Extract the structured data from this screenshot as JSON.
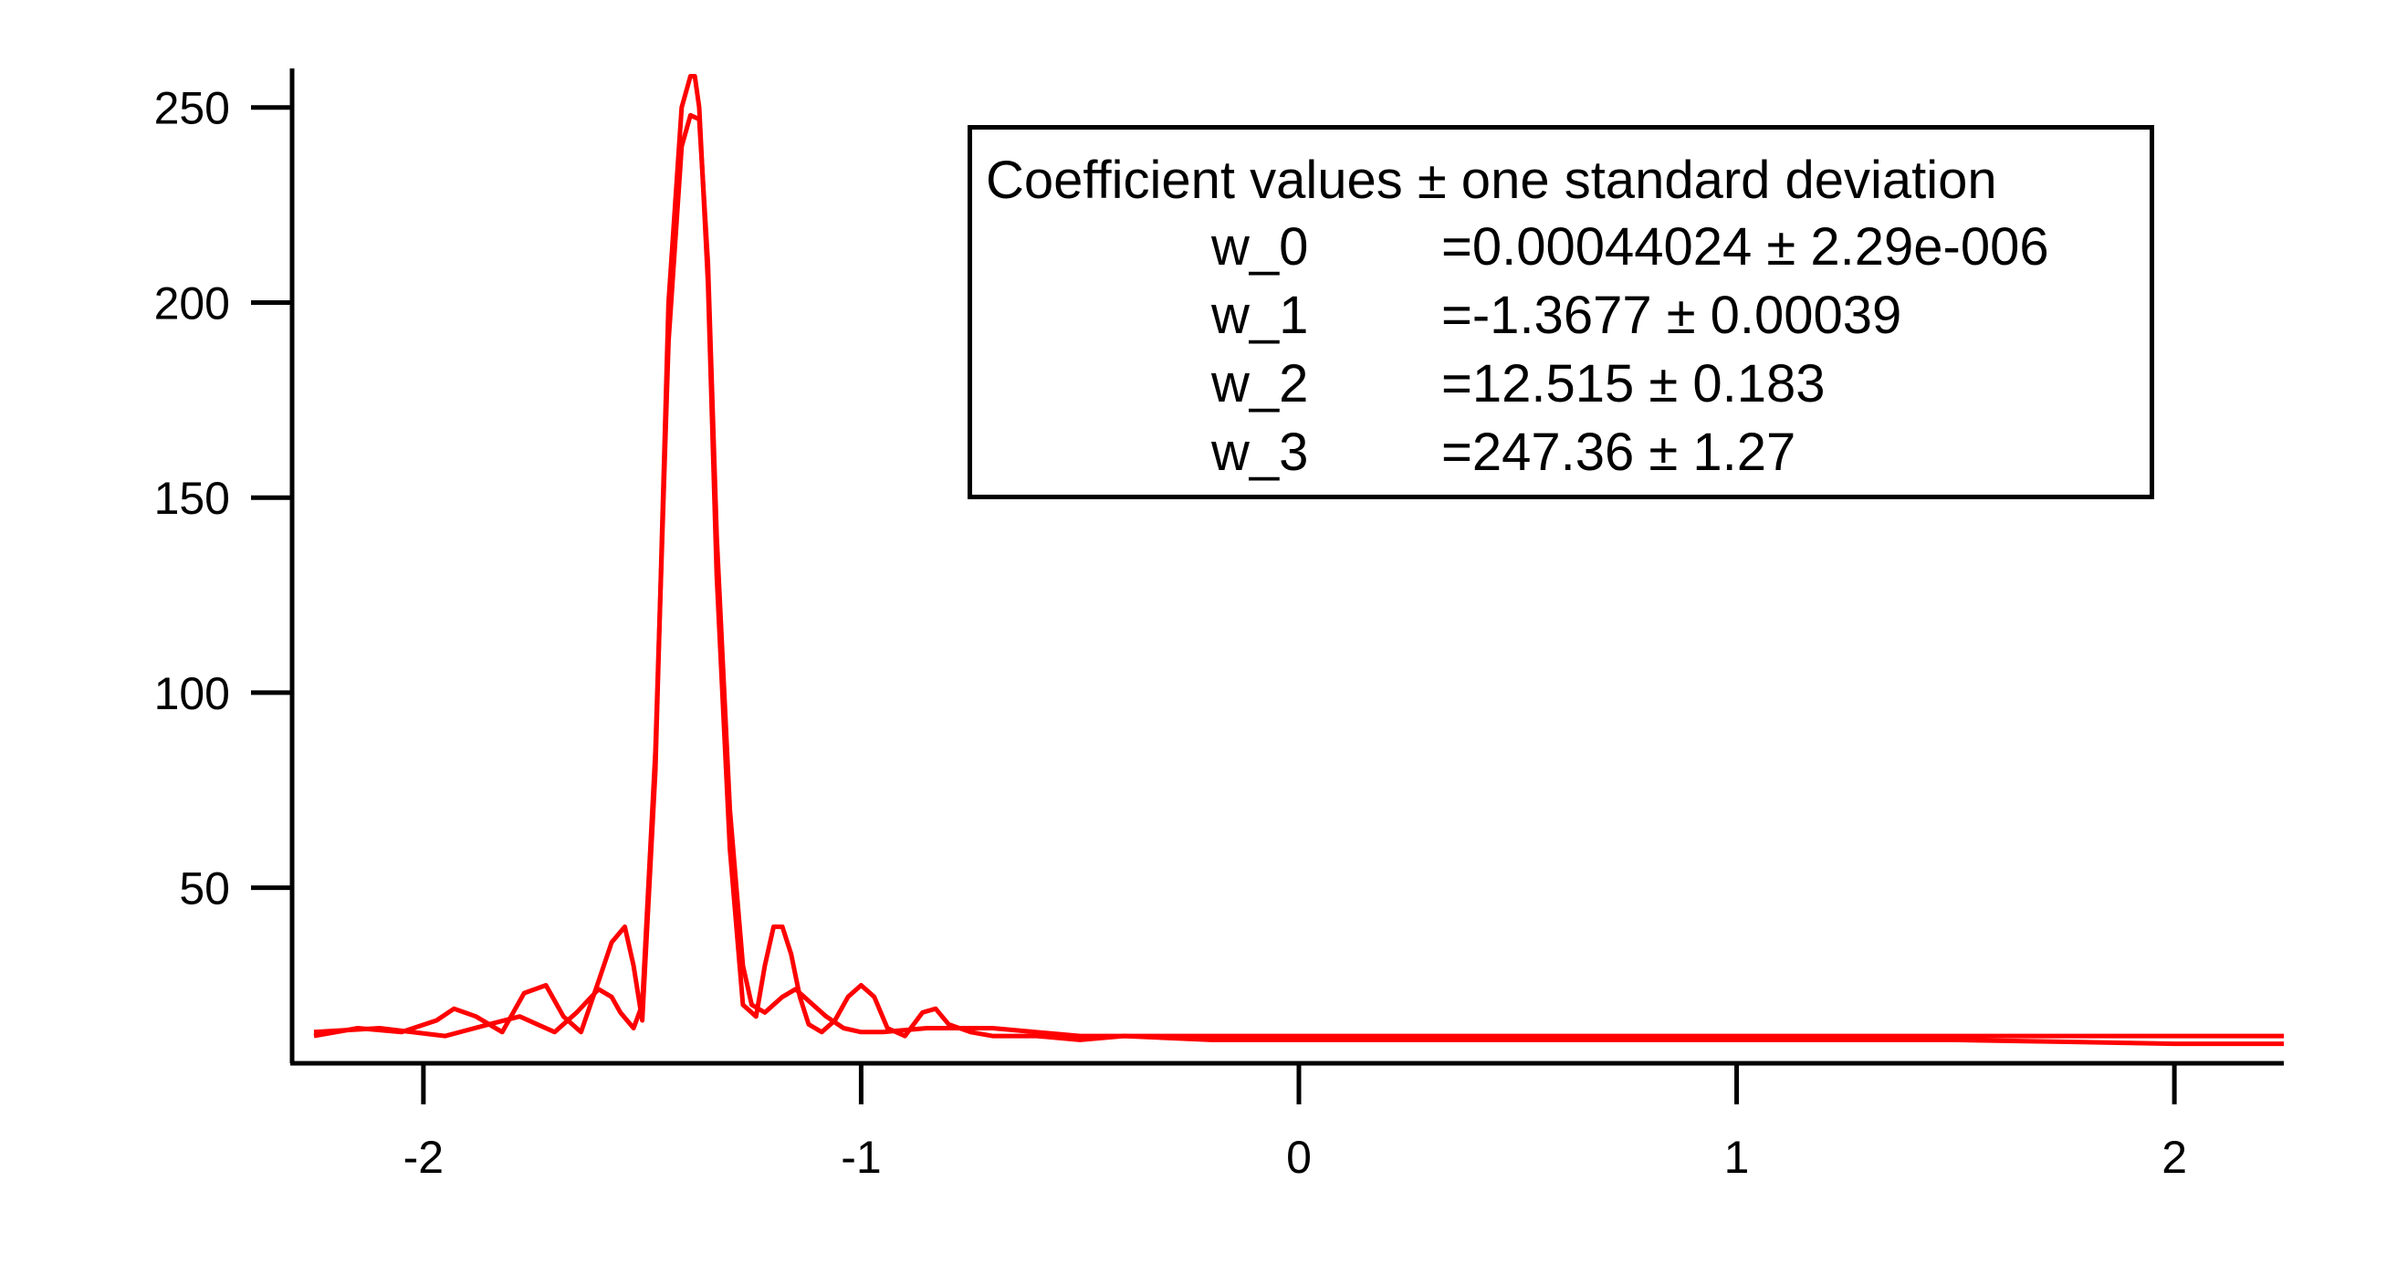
{
  "chart_data": {
    "type": "line",
    "title": "",
    "xlabel": "",
    "ylabel": "",
    "xlim": [
      -2.3,
      2.25
    ],
    "ylim": [
      5,
      260
    ],
    "x_ticks": [
      -2,
      -1,
      0,
      1,
      2
    ],
    "y_ticks": [
      50,
      100,
      150,
      200,
      250
    ],
    "x_tick_labels": [
      "-2",
      "-1",
      "0",
      "1",
      "2"
    ],
    "y_tick_labels": [
      "50",
      "100",
      "150",
      "200",
      "250"
    ],
    "grid": false,
    "line_color": "#ff0000",
    "series": [
      {
        "x": [
          -2.25,
          -2.15,
          -2.05,
          -1.97,
          -1.93,
          -1.88,
          -1.82,
          -1.77,
          -1.72,
          -1.68,
          -1.64,
          -1.6,
          -1.57,
          -1.54,
          -1.52,
          -1.5,
          -1.47,
          -1.44,
          -1.41,
          -1.39,
          -1.38,
          -1.37,
          -1.35,
          -1.33,
          -1.3,
          -1.27,
          -1.24,
          -1.22,
          -1.2,
          -1.18,
          -1.16,
          -1.14,
          -1.12,
          -1.09,
          -1.06,
          -1.03,
          -1.0,
          -0.97,
          -0.94,
          -0.9,
          -0.86,
          -0.83,
          -0.8,
          -0.75,
          -0.7,
          -0.65,
          -0.6,
          -0.5,
          -0.4,
          -0.2,
          0.0,
          0.5,
          1.0,
          1.5,
          2.0,
          2.25
        ],
        "values": [
          12,
          14,
          13,
          16,
          19,
          17,
          13,
          23,
          25,
          17,
          13,
          26,
          36,
          40,
          30,
          16,
          80,
          200,
          250,
          258,
          258,
          250,
          205,
          130,
          60,
          20,
          17,
          30,
          40,
          40,
          33,
          22,
          15,
          13,
          16,
          22,
          25,
          22,
          14,
          12,
          18,
          19,
          15,
          13,
          12,
          12,
          12,
          11,
          12,
          11,
          11,
          11,
          11,
          11,
          10,
          10
        ]
      },
      {
        "x": [
          -2.25,
          -2.1,
          -1.95,
          -1.85,
          -1.78,
          -1.74,
          -1.7,
          -1.65,
          -1.6,
          -1.57,
          -1.55,
          -1.52,
          -1.5,
          -1.47,
          -1.44,
          -1.41,
          -1.39,
          -1.37,
          -1.35,
          -1.33,
          -1.3,
          -1.27,
          -1.25,
          -1.22,
          -1.18,
          -1.15,
          -1.12,
          -1.08,
          -1.04,
          -1.0,
          -0.95,
          -0.85,
          -0.7,
          -0.5,
          -0.2,
          0.0,
          0.5,
          1.0,
          1.5,
          2.0,
          2.25
        ],
        "values": [
          13,
          14,
          12,
          15,
          17,
          15,
          13,
          18,
          24,
          22,
          18,
          14,
          20,
          85,
          190,
          240,
          248,
          247,
          210,
          140,
          70,
          30,
          20,
          18,
          22,
          24,
          21,
          17,
          14,
          13,
          13,
          14,
          14,
          12,
          12,
          12,
          12,
          12,
          12,
          12,
          12
        ]
      }
    ]
  },
  "legend": {
    "title": "Coefficient values ± one standard deviation",
    "coefficients": [
      {
        "name": "w_0",
        "value": "=0.00044024 ± 2.29e-006"
      },
      {
        "name": "w_1",
        "value": "=-1.3677 ± 0.00039"
      },
      {
        "name": "w_2",
        "value": "=12.515 ± 0.183"
      },
      {
        "name": "w_3",
        "value": "=247.36 ± 1.27"
      }
    ]
  }
}
